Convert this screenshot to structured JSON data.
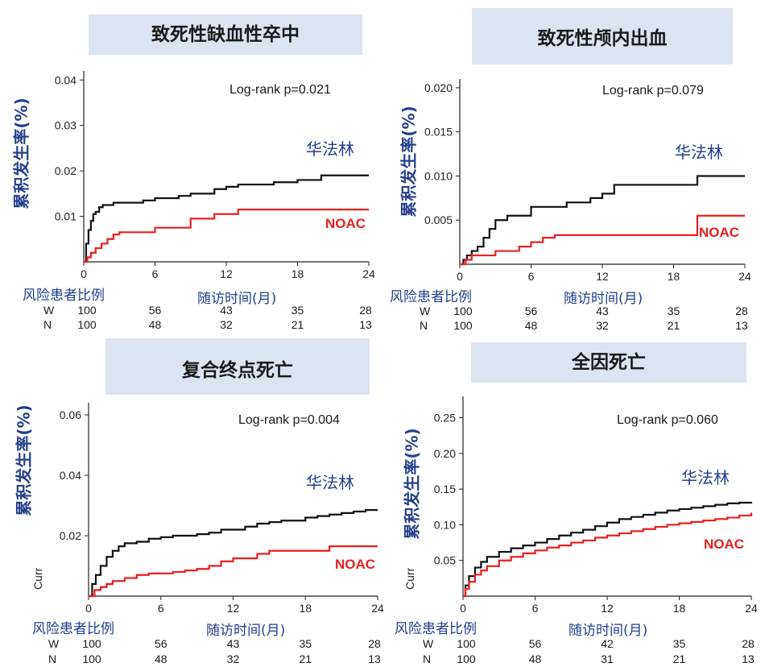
{
  "common": {
    "ylabel": "累积发生率(%)",
    "xlabel": "随访时间(月)",
    "risk_header": "风险患者比例",
    "group_w": "W",
    "group_n": "N",
    "warfarin_label": "华法林",
    "noac_label": "NOAC",
    "colors": {
      "warfarin": "#111111",
      "noac": "#e8211e",
      "title_bg": "#dce4f2",
      "label_blue": "#233f8c"
    }
  },
  "chart_data": [
    {
      "type": "line",
      "title": "致死性缺血性卒中",
      "logrank": "Log-rank  p=0.021",
      "xticks": [
        "0",
        "6",
        "12",
        "18",
        "24"
      ],
      "yticks": [
        "0.01",
        "0.02",
        "0.03",
        "0.04"
      ],
      "xlim": [
        0,
        24
      ],
      "ylim": [
        0,
        0.042
      ],
      "series": [
        {
          "name": "华法林",
          "x": [
            0,
            0.2,
            0.4,
            0.6,
            0.8,
            1,
            1.3,
            1.6,
            2,
            2.5,
            3,
            4,
            5,
            6,
            7,
            8,
            9,
            10,
            11,
            12,
            13,
            14,
            15,
            16,
            17,
            18,
            19,
            20,
            21,
            22,
            23,
            24
          ],
          "y": [
            0,
            0.004,
            0.007,
            0.009,
            0.0105,
            0.011,
            0.012,
            0.0125,
            0.0125,
            0.013,
            0.013,
            0.013,
            0.0135,
            0.014,
            0.014,
            0.0145,
            0.015,
            0.015,
            0.016,
            0.0165,
            0.017,
            0.017,
            0.017,
            0.0175,
            0.0175,
            0.018,
            0.018,
            0.019,
            0.019,
            0.019,
            0.019,
            0.019
          ]
        },
        {
          "name": "NOAC",
          "x": [
            0,
            0.3,
            0.6,
            1,
            1.5,
            2,
            2.5,
            3,
            4,
            5,
            6,
            7,
            8,
            9,
            10,
            11,
            12,
            13,
            14,
            15,
            16,
            17,
            18,
            19,
            20,
            21,
            22,
            23,
            24
          ],
          "y": [
            0,
            0.001,
            0.002,
            0.003,
            0.004,
            0.005,
            0.006,
            0.0065,
            0.0065,
            0.0065,
            0.0075,
            0.0075,
            0.0075,
            0.0095,
            0.0095,
            0.0105,
            0.0105,
            0.0115,
            0.0115,
            0.0115,
            0.0115,
            0.0115,
            0.0115,
            0.0115,
            0.0115,
            0.0115,
            0.0115,
            0.0115,
            0.0115
          ]
        }
      ],
      "risk": {
        "w": [
          "100",
          "56",
          "43",
          "35",
          "28"
        ],
        "n": [
          "100",
          "48",
          "32",
          "21",
          "13"
        ]
      }
    },
    {
      "type": "line",
      "title": "致死性颅内出血",
      "logrank": "Log-rank  p=0.079",
      "xticks": [
        "0",
        "6",
        "12",
        "18",
        "24"
      ],
      "yticks": [
        "0.005",
        "0.010",
        "0.015",
        "0.020"
      ],
      "xlim": [
        0,
        24
      ],
      "ylim": [
        0,
        0.021
      ],
      "series": [
        {
          "name": "华法林",
          "x": [
            0,
            0.3,
            0.6,
            1,
            1.5,
            2,
            2.5,
            3,
            4,
            5,
            6,
            7,
            8,
            9,
            10,
            11,
            12,
            13,
            14,
            15,
            16,
            17,
            18,
            19,
            20,
            21,
            22,
            23,
            24
          ],
          "y": [
            0,
            0.0005,
            0.001,
            0.0015,
            0.002,
            0.003,
            0.004,
            0.005,
            0.0055,
            0.0055,
            0.0065,
            0.0065,
            0.0065,
            0.007,
            0.007,
            0.0075,
            0.008,
            0.009,
            0.009,
            0.009,
            0.009,
            0.009,
            0.009,
            0.009,
            0.01,
            0.01,
            0.01,
            0.01,
            0.01
          ]
        },
        {
          "name": "NOAC",
          "x": [
            0,
            0.5,
            1,
            2,
            3,
            4,
            5,
            6,
            7,
            8,
            9,
            10,
            11,
            12,
            13,
            14,
            15,
            16,
            17,
            18,
            19,
            20,
            21,
            22,
            23,
            24
          ],
          "y": [
            0,
            0.0005,
            0.001,
            0.001,
            0.0015,
            0.0015,
            0.002,
            0.0025,
            0.003,
            0.0033,
            0.0033,
            0.0033,
            0.0033,
            0.0033,
            0.0033,
            0.0033,
            0.0033,
            0.0033,
            0.0033,
            0.0033,
            0.0033,
            0.0055,
            0.0055,
            0.0055,
            0.0055,
            0.0055
          ]
        }
      ],
      "risk": {
        "w": [
          "100",
          "56",
          "43",
          "35",
          "28"
        ],
        "n": [
          "100",
          "48",
          "32",
          "21",
          "13"
        ]
      }
    },
    {
      "type": "line",
      "title": "复合终点死亡",
      "logrank": "Log-rank  p=0.004",
      "ycaption": "Curr",
      "xticks": [
        "0",
        "6",
        "12",
        "18",
        "24"
      ],
      "yticks": [
        "0.02",
        "0.04",
        "0.06"
      ],
      "xlim": [
        0,
        24
      ],
      "ylim": [
        0,
        0.064
      ],
      "series": [
        {
          "name": "华法林",
          "x": [
            0,
            0.3,
            0.6,
            1,
            1.5,
            2,
            2.5,
            3,
            4,
            5,
            6,
            7,
            8,
            9,
            10,
            11,
            12,
            13,
            14,
            15,
            16,
            17,
            18,
            19,
            20,
            21,
            22,
            23,
            24
          ],
          "y": [
            0,
            0.004,
            0.007,
            0.01,
            0.013,
            0.015,
            0.0165,
            0.0175,
            0.018,
            0.019,
            0.0195,
            0.02,
            0.02,
            0.0205,
            0.021,
            0.022,
            0.022,
            0.023,
            0.024,
            0.0245,
            0.025,
            0.025,
            0.026,
            0.0265,
            0.027,
            0.0275,
            0.028,
            0.0285,
            0.0285
          ]
        },
        {
          "name": "NOAC",
          "x": [
            0,
            0.5,
            1,
            1.5,
            2,
            3,
            4,
            5,
            6,
            7,
            8,
            9,
            10,
            11,
            12,
            13,
            14,
            15,
            16,
            17,
            18,
            19,
            20,
            21,
            22,
            23,
            24
          ],
          "y": [
            0,
            0.002,
            0.003,
            0.004,
            0.005,
            0.006,
            0.007,
            0.0075,
            0.0075,
            0.008,
            0.0085,
            0.009,
            0.01,
            0.0115,
            0.0125,
            0.0125,
            0.014,
            0.015,
            0.015,
            0.015,
            0.015,
            0.015,
            0.0165,
            0.0165,
            0.0165,
            0.0165,
            0.0165
          ]
        }
      ],
      "risk": {
        "w": [
          "100",
          "56",
          "43",
          "35",
          "28"
        ],
        "n": [
          "100",
          "48",
          "32",
          "21",
          "13"
        ]
      }
    },
    {
      "type": "line",
      "title": "全因死亡",
      "logrank": "Log-rank  p=0.060",
      "ycaption": "Curr",
      "xticks": [
        "0",
        "6",
        "12",
        "18",
        "24"
      ],
      "yticks": [
        "0.05",
        "0.10",
        "0.15",
        "0.20",
        "0.25"
      ],
      "xlim": [
        0,
        24
      ],
      "ylim": [
        0,
        0.28
      ],
      "series": [
        {
          "name": "华法林",
          "x": [
            0,
            0.2,
            0.5,
            1,
            1.5,
            2,
            3,
            4,
            5,
            6,
            7,
            8,
            9,
            10,
            11,
            12,
            13,
            14,
            15,
            16,
            17,
            18,
            19,
            20,
            21,
            22,
            23,
            24
          ],
          "y": [
            0,
            0.015,
            0.028,
            0.04,
            0.048,
            0.055,
            0.062,
            0.067,
            0.071,
            0.075,
            0.08,
            0.085,
            0.089,
            0.093,
            0.098,
            0.103,
            0.108,
            0.111,
            0.114,
            0.117,
            0.12,
            0.122,
            0.124,
            0.126,
            0.128,
            0.13,
            0.131,
            0.132
          ]
        },
        {
          "name": "NOAC",
          "x": [
            0,
            0.2,
            0.5,
            1,
            1.5,
            2,
            3,
            4,
            5,
            6,
            7,
            8,
            9,
            10,
            11,
            12,
            13,
            14,
            15,
            16,
            17,
            18,
            19,
            20,
            21,
            22,
            23,
            24
          ],
          "y": [
            0,
            0.01,
            0.02,
            0.03,
            0.036,
            0.042,
            0.05,
            0.055,
            0.06,
            0.064,
            0.068,
            0.071,
            0.075,
            0.078,
            0.082,
            0.085,
            0.088,
            0.091,
            0.094,
            0.097,
            0.1,
            0.102,
            0.104,
            0.106,
            0.108,
            0.11,
            0.113,
            0.117
          ]
        }
      ],
      "risk": {
        "w": [
          "100",
          "56",
          "42",
          "35",
          "28"
        ],
        "n": [
          "100",
          "48",
          "31",
          "21",
          "13"
        ]
      }
    }
  ]
}
